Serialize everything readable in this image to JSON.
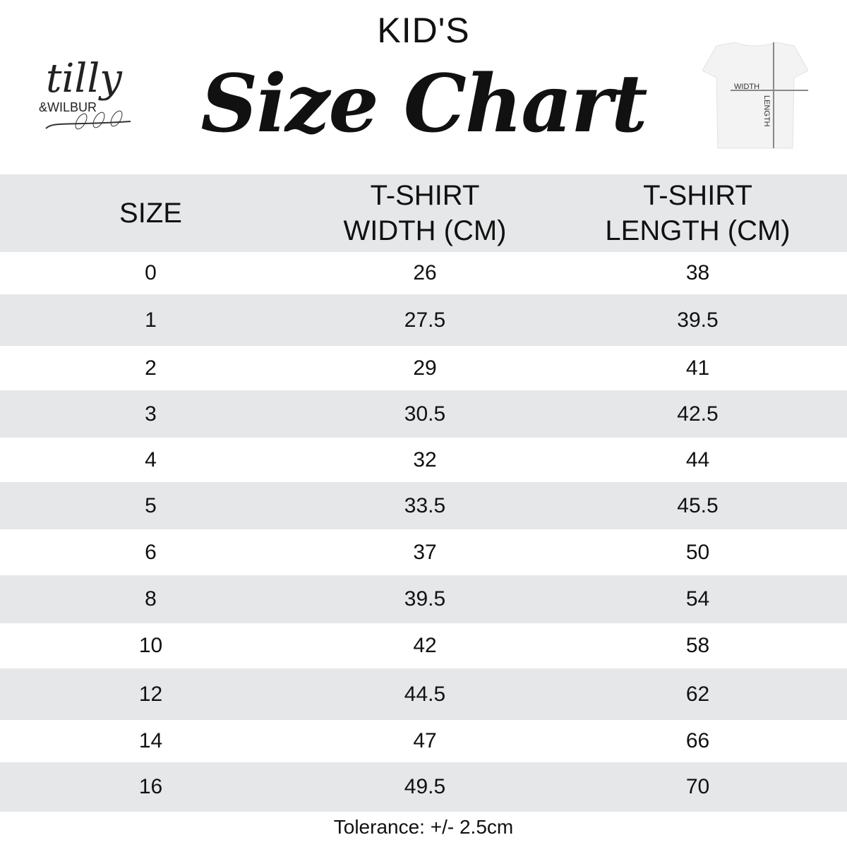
{
  "header": {
    "kicker": "KID'S",
    "title": "Size Chart",
    "logo_text": "tilly & WILBUR",
    "diagram_labels": {
      "width": "WIDTH",
      "length": "LENGTH"
    }
  },
  "table": {
    "columns": [
      "SIZE",
      "T-SHIRT WIDTH (CM)",
      "T-SHIRT LENGTH (CM)"
    ],
    "column_lines": [
      [
        "SIZE"
      ],
      [
        "T-SHIRT",
        "WIDTH (CM)"
      ],
      [
        "T-SHIRT",
        "LENGTH (CM)"
      ]
    ],
    "rows": [
      [
        "0",
        "26",
        "38"
      ],
      [
        "1",
        "27.5",
        "39.5"
      ],
      [
        "2",
        "29",
        "41"
      ],
      [
        "3",
        "30.5",
        "42.5"
      ],
      [
        "4",
        "32",
        "44"
      ],
      [
        "5",
        "33.5",
        "45.5"
      ],
      [
        "6",
        "37",
        "50"
      ],
      [
        "8",
        "39.5",
        "54"
      ],
      [
        "10",
        "42",
        "58"
      ],
      [
        "12",
        "44.5",
        "62"
      ],
      [
        "14",
        "47",
        "66"
      ],
      [
        "16",
        "49.5",
        "70"
      ]
    ],
    "stripe_color": "#e6e7e9"
  },
  "footer": {
    "tolerance": "Tolerance: +/- 2.5cm"
  }
}
